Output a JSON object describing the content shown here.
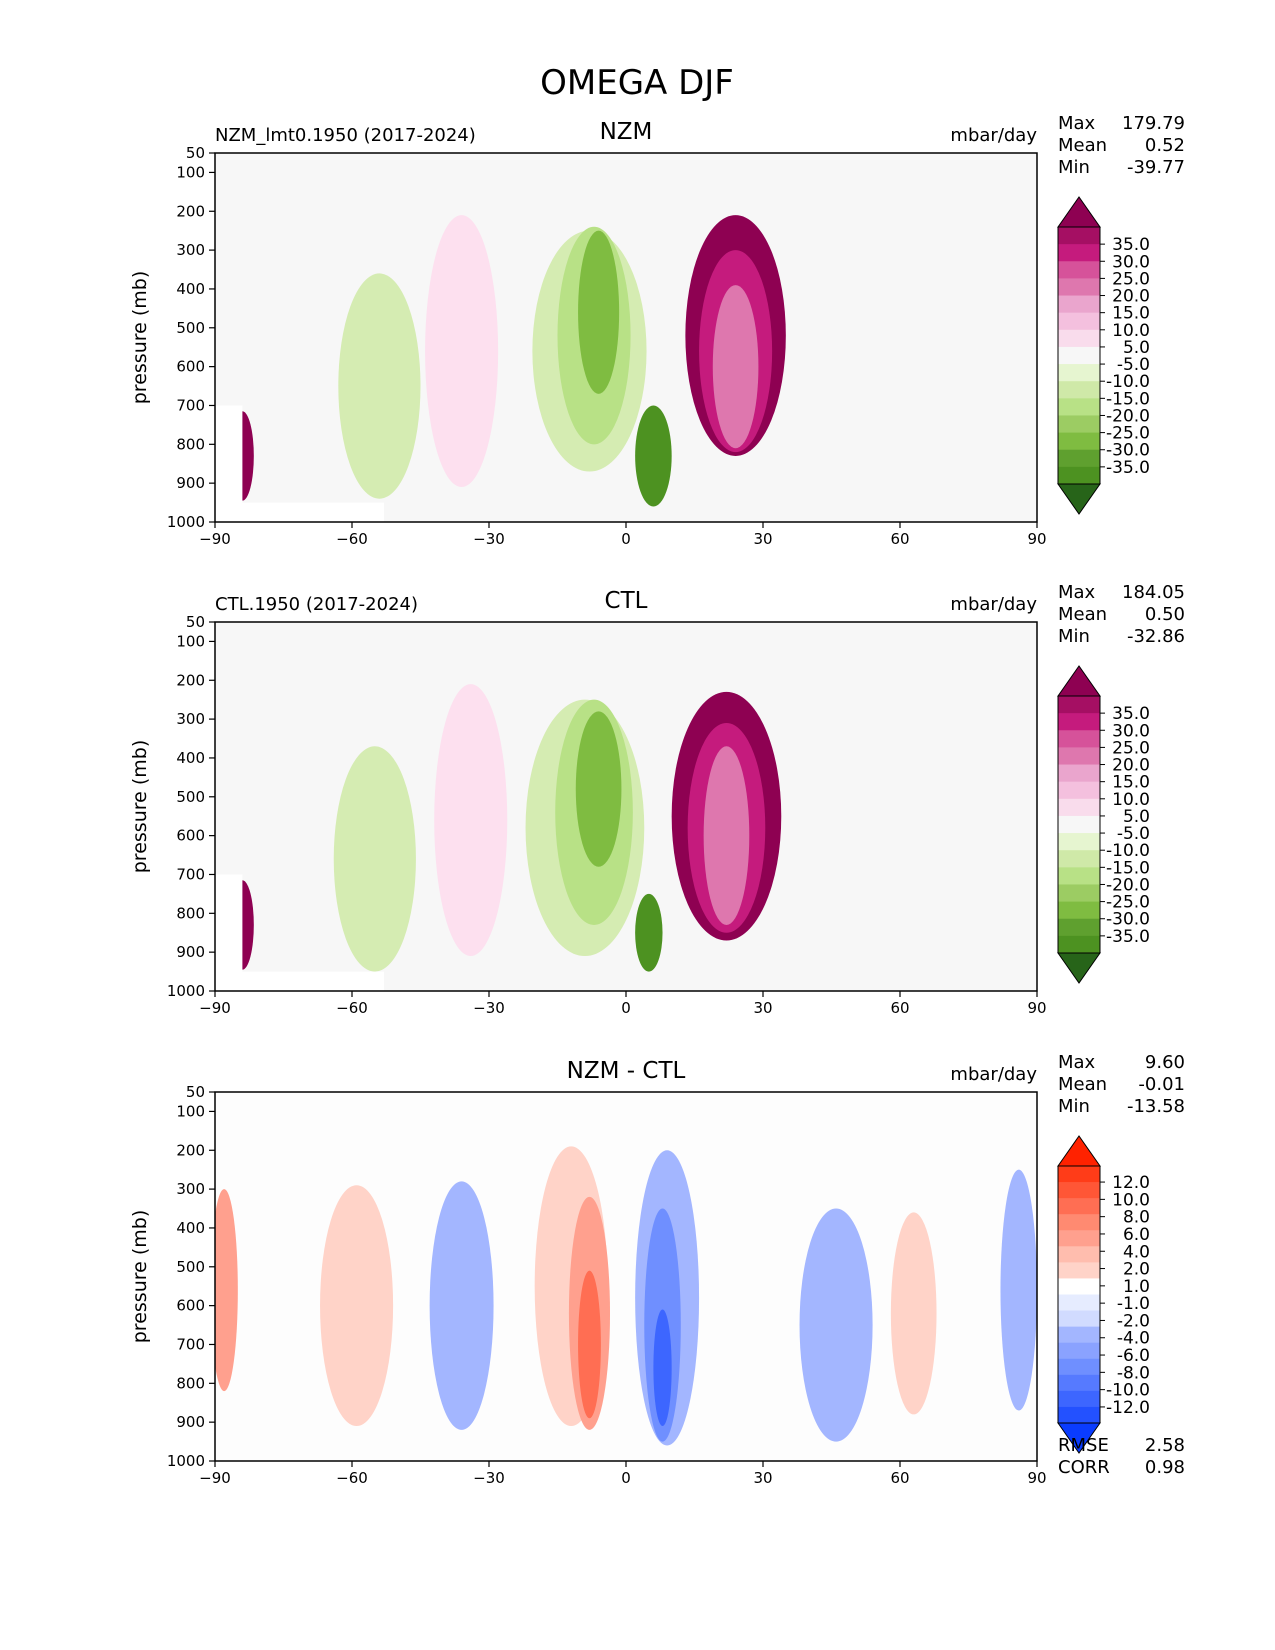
{
  "figure_title": "OMEGA DJF",
  "colors": {
    "bg": "#f7f7f7",
    "piyg": [
      "#276419",
      "#4d9221",
      "#7fbc41",
      "#b8e186",
      "#d5ecb2",
      "#e6f5d0",
      "#f7f7f7",
      "#fde0ef",
      "#f4c0de",
      "#de77ae",
      "#c51b7d",
      "#8e0152"
    ],
    "bwr": [
      "#0a3cff",
      "#3d66ff",
      "#6f8fff",
      "#a3b6ff",
      "#d1dbff",
      "#ffffff",
      "#ffd3c8",
      "#ffa08e",
      "#ff6e53",
      "#ff3c18",
      "#ff2200"
    ]
  },
  "chart_data": [
    {
      "type": "contour",
      "title": "NZM",
      "left_label": "NZM_lmt0.1950 (2017-2024)",
      "units": "mbar/day",
      "ylabel": "pressure (mb)",
      "xticks": [
        "−90",
        "−60",
        "−30",
        "0",
        "30",
        "60",
        "90"
      ],
      "yticks": [
        "50",
        "100",
        "200",
        "300",
        "400",
        "500",
        "600",
        "700",
        "800",
        "900",
        "1000"
      ],
      "xlim": [
        -90,
        90
      ],
      "ylim": [
        1000,
        50
      ],
      "stats": {
        "labels": [
          "Max",
          "Mean",
          "Min"
        ],
        "values": [
          "179.79",
          "0.52",
          "-39.77"
        ]
      },
      "colorbar_labels": [
        "35.0",
        "30.0",
        "25.0",
        "20.0",
        "15.0",
        "10.0",
        "5.0",
        "-5.0",
        "-10.0",
        "-15.0",
        "-20.0",
        "-25.0",
        "-30.0",
        "-35.0"
      ],
      "features": [
        {
          "x": 24,
          "p": 520,
          "w": 22,
          "h": 620,
          "level": 11
        },
        {
          "x": 24,
          "p": 560,
          "w": 16,
          "h": 520,
          "level": 10
        },
        {
          "x": 24,
          "p": 600,
          "w": 10,
          "h": 420,
          "level": 9
        },
        {
          "x": -8,
          "p": 560,
          "w": 25,
          "h": 620,
          "level": -1
        },
        {
          "x": -7,
          "p": 520,
          "w": 16,
          "h": 560,
          "level": -2
        },
        {
          "x": -6,
          "p": 460,
          "w": 9,
          "h": 420,
          "level": -3
        },
        {
          "x": 6,
          "p": 830,
          "w": 8,
          "h": 260,
          "level": -4
        },
        {
          "x": -36,
          "p": 560,
          "w": 16,
          "h": 700,
          "level": 7
        },
        {
          "x": -54,
          "p": 650,
          "w": 18,
          "h": 580,
          "level": -1
        },
        {
          "x": -84,
          "p": 830,
          "w": 5,
          "h": 230,
          "level": 11
        }
      ]
    },
    {
      "type": "contour",
      "title": "CTL",
      "left_label": "CTL.1950 (2017-2024)",
      "units": "mbar/day",
      "ylabel": "pressure (mb)",
      "xticks": [
        "−90",
        "−60",
        "−30",
        "0",
        "30",
        "60",
        "90"
      ],
      "yticks": [
        "50",
        "100",
        "200",
        "300",
        "400",
        "500",
        "600",
        "700",
        "800",
        "900",
        "1000"
      ],
      "xlim": [
        -90,
        90
      ],
      "ylim": [
        1000,
        50
      ],
      "stats": {
        "labels": [
          "Max",
          "Mean",
          "Min"
        ],
        "values": [
          "184.05",
          "0.50",
          "-32.86"
        ]
      },
      "colorbar_labels": [
        "35.0",
        "30.0",
        "25.0",
        "20.0",
        "15.0",
        "10.0",
        "5.0",
        "-5.0",
        "-10.0",
        "-15.0",
        "-20.0",
        "-25.0",
        "-30.0",
        "-35.0"
      ],
      "features": [
        {
          "x": 22,
          "p": 550,
          "w": 24,
          "h": 640,
          "level": 11
        },
        {
          "x": 22,
          "p": 580,
          "w": 17,
          "h": 540,
          "level": 10
        },
        {
          "x": 22,
          "p": 600,
          "w": 10,
          "h": 460,
          "level": 9
        },
        {
          "x": -9,
          "p": 580,
          "w": 26,
          "h": 660,
          "level": -1
        },
        {
          "x": -7,
          "p": 540,
          "w": 17,
          "h": 580,
          "level": -2
        },
        {
          "x": -6,
          "p": 480,
          "w": 10,
          "h": 400,
          "level": -3
        },
        {
          "x": 5,
          "p": 850,
          "w": 6,
          "h": 200,
          "level": -4
        },
        {
          "x": -34,
          "p": 560,
          "w": 16,
          "h": 700,
          "level": 7
        },
        {
          "x": -55,
          "p": 660,
          "w": 18,
          "h": 580,
          "level": -1
        },
        {
          "x": -84,
          "p": 830,
          "w": 5,
          "h": 230,
          "level": 11
        }
      ]
    },
    {
      "type": "contour",
      "title": "NZM - CTL",
      "left_label": "",
      "units": "mbar/day",
      "ylabel": "pressure (mb)",
      "xticks": [
        "−90",
        "−60",
        "−30",
        "0",
        "30",
        "60",
        "90"
      ],
      "yticks": [
        "50",
        "100",
        "200",
        "300",
        "400",
        "500",
        "600",
        "700",
        "800",
        "900",
        "1000"
      ],
      "xlim": [
        -90,
        90
      ],
      "ylim": [
        1000,
        50
      ],
      "stats": {
        "labels": [
          "Max",
          "Mean",
          "Min"
        ],
        "values": [
          "9.60",
          "-0.01",
          "-13.58"
        ]
      },
      "extra_stats": {
        "labels": [
          "RMSE",
          "CORR"
        ],
        "values": [
          "2.58",
          "0.98"
        ]
      },
      "colorbar_labels": [
        "12.0",
        "10.0",
        "8.0",
        "6.0",
        "4.0",
        "2.0",
        "1.0",
        "-1.0",
        "-2.0",
        "-4.0",
        "-6.0",
        "-8.0",
        "-10.0",
        "-12.0"
      ],
      "features": [
        {
          "x": -12,
          "p": 550,
          "w": 16,
          "h": 720,
          "level": 6
        },
        {
          "x": -8,
          "p": 620,
          "w": 9,
          "h": 600,
          "level": 7
        },
        {
          "x": -8,
          "p": 700,
          "w": 5,
          "h": 380,
          "level": 8
        },
        {
          "x": 9,
          "p": 580,
          "w": 14,
          "h": 760,
          "level": -6
        },
        {
          "x": 8,
          "p": 650,
          "w": 8,
          "h": 600,
          "level": -7
        },
        {
          "x": 8,
          "p": 760,
          "w": 4,
          "h": 300,
          "level": -8
        },
        {
          "x": -36,
          "p": 600,
          "w": 14,
          "h": 640,
          "level": -6
        },
        {
          "x": -59,
          "p": 600,
          "w": 16,
          "h": 620,
          "level": 6
        },
        {
          "x": 46,
          "p": 650,
          "w": 16,
          "h": 600,
          "level": -6
        },
        {
          "x": 63,
          "p": 620,
          "w": 10,
          "h": 520,
          "level": 6
        },
        {
          "x": 86,
          "p": 560,
          "w": 8,
          "h": 620,
          "level": -6
        },
        {
          "x": -88,
          "p": 560,
          "w": 6,
          "h": 520,
          "level": 7
        }
      ]
    }
  ]
}
